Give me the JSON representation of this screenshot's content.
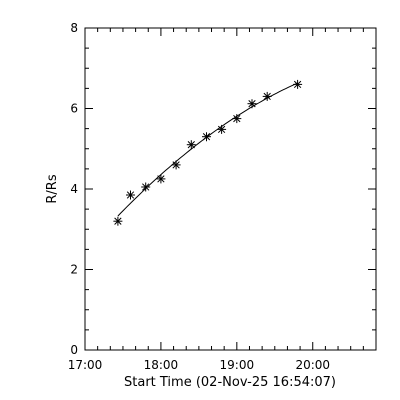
{
  "chart_data": {
    "type": "scatter",
    "xlabel": "Start Time (02-Nov-25 16:54:07)",
    "ylabel": "R/Rs",
    "xlim": [
      "17:00",
      "20:50"
    ],
    "ylim": [
      0,
      8
    ],
    "x_ticks": [
      "17:00",
      "18:00",
      "19:00",
      "20:00"
    ],
    "y_ticks": [
      "0",
      "2",
      "4",
      "6",
      "8"
    ],
    "grid": false,
    "marker": "asterisk",
    "fit_line": true,
    "colors": {
      "axes": "#000000",
      "marks": "#000000",
      "background": "#ffffff"
    },
    "series": [
      {
        "x": [
          "17:26",
          "17:36",
          "17:48",
          "18:00",
          "18:12",
          "18:24",
          "18:36",
          "18:48",
          "19:00",
          "19:12",
          "19:24",
          "19:48"
        ],
        "y": [
          3.2,
          3.85,
          4.05,
          4.25,
          4.6,
          5.1,
          5.3,
          5.48,
          5.75,
          6.12,
          6.3,
          6.6
        ]
      }
    ]
  }
}
